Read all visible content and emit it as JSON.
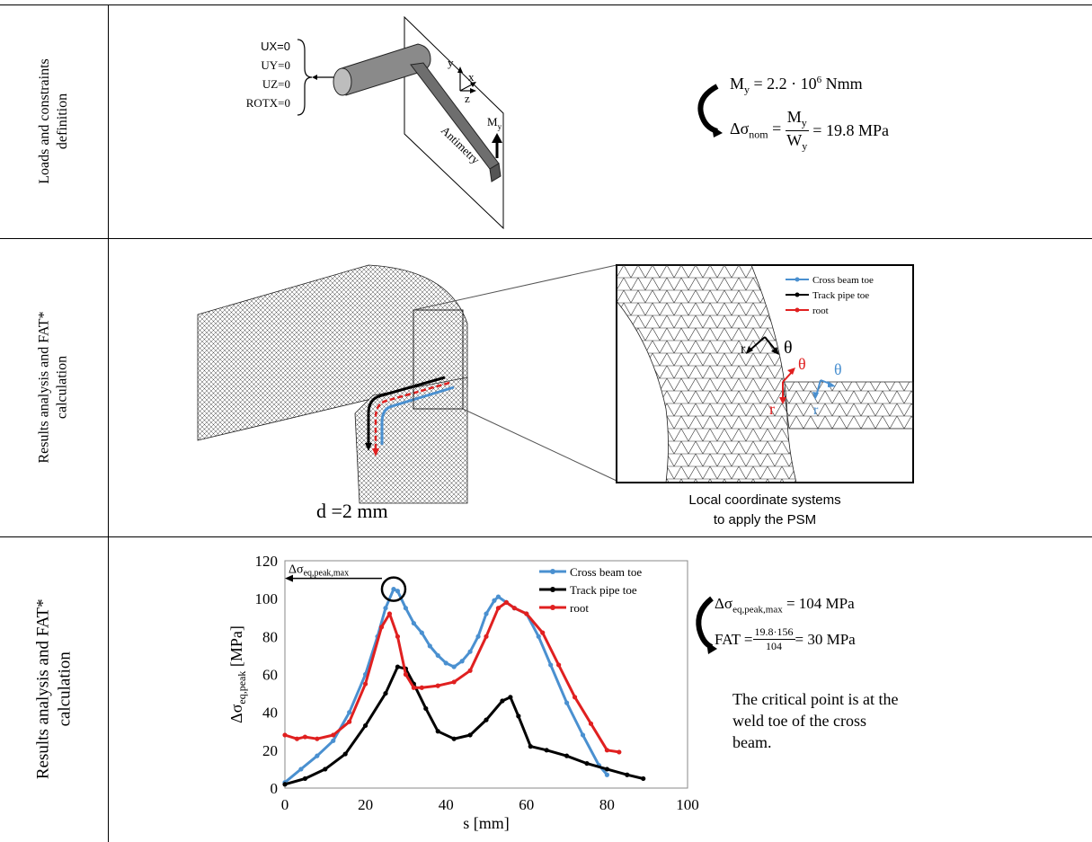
{
  "rows": [
    {
      "label_line1": "Loads and constraints",
      "label_line2": "definition"
    },
    {
      "label_line1": "Results analysis and FAT*",
      "label_line2": "calculation"
    },
    {
      "label_line1": "Results analysis and FAT*",
      "label_line2": "calculation"
    }
  ],
  "row1": {
    "constraints": [
      "UX=0",
      "UY=0",
      "UZ=0",
      "ROTX=0"
    ],
    "axis_y": "y",
    "axis_x": "x",
    "axis_z": "z",
    "antimetry_label": "Antimetry",
    "moment_label": "M",
    "moment_sub": "y",
    "moment_eq": "M",
    "moment_eq_sub": "y",
    "moment_eq_rhs": "= 2.2 · 10",
    "moment_eq_exp": "6",
    "moment_eq_unit": " Nmm",
    "nominal_lhs": "Δσ",
    "nominal_lhs_sub": "nom",
    "nominal_num": "M",
    "nominal_num_sub": "y",
    "nominal_den": "W",
    "nominal_den_sub": "y",
    "nominal_rhs": "= 19.8 MPa"
  },
  "row2": {
    "mesh_size": "d =2 mm",
    "legend": [
      {
        "name": "Cross beam toe",
        "color": "#4a90d0"
      },
      {
        "name": "Track pipe toe",
        "color": "#000000"
      },
      {
        "name": "root",
        "color": "#e02020"
      }
    ],
    "coord_r": "r",
    "coord_theta": "θ",
    "caption_line1": "Local coordinate systems",
    "caption_line2": "to apply the PSM"
  },
  "row3": {
    "peak_label": "Δσ",
    "peak_label_sub": "eq,peak,max",
    "eq1_lhs": "Δσ",
    "eq1_sub": "eq,peak,max",
    "eq1_rhs": " = 104 MPa",
    "eq2_lhs": "FAT = ",
    "eq2_num": "19.8·156",
    "eq2_den": "104",
    "eq2_rhs": " = 30 MPa",
    "note_line1": "The critical point is at the",
    "note_line2": "weld toe of the cross",
    "note_line3": "beam."
  },
  "chart_data": {
    "type": "line",
    "title": "",
    "xlabel": "s [mm]",
    "ylabel": "Δσ",
    "ylabel_sub": "eq,peak",
    "ylabel_unit": " [MPa]",
    "xlim": [
      0,
      100
    ],
    "ylim": [
      0,
      120
    ],
    "xticks": [
      0,
      20,
      40,
      60,
      80,
      100
    ],
    "yticks": [
      0,
      20,
      40,
      60,
      80,
      100,
      120
    ],
    "grid": false,
    "legend_position": "top-right",
    "series": [
      {
        "name": "Cross beam toe",
        "color": "#4a90d0",
        "x": [
          0,
          4,
          8,
          12,
          16,
          20,
          23,
          25,
          27,
          28,
          30,
          32,
          34,
          36,
          38,
          40,
          42,
          44,
          46,
          48,
          50,
          52,
          53,
          55,
          57,
          60,
          63,
          66,
          70,
          74,
          78,
          80
        ],
        "y": [
          3,
          10,
          17,
          25,
          40,
          60,
          80,
          95,
          105,
          104,
          95,
          87,
          82,
          75,
          70,
          66,
          64,
          67,
          72,
          80,
          92,
          99,
          101,
          98,
          95,
          92,
          80,
          65,
          45,
          28,
          12,
          7
        ]
      },
      {
        "name": "Track pipe toe",
        "color": "#000000",
        "x": [
          0,
          5,
          10,
          15,
          20,
          25,
          28,
          30,
          32,
          35,
          38,
          42,
          46,
          50,
          54,
          56,
          58,
          61,
          65,
          70,
          75,
          80,
          85,
          89
        ],
        "y": [
          2,
          5,
          10,
          18,
          33,
          50,
          64,
          63,
          55,
          42,
          30,
          26,
          28,
          36,
          46,
          48,
          38,
          22,
          20,
          17,
          13,
          10,
          7,
          5
        ]
      },
      {
        "name": "root",
        "color": "#e02020",
        "x": [
          0,
          3,
          5,
          8,
          12,
          16,
          20,
          24,
          26,
          28,
          30,
          32,
          34,
          38,
          42,
          46,
          50,
          53,
          55,
          57,
          60,
          64,
          68,
          72,
          76,
          80,
          83
        ],
        "y": [
          28,
          26,
          27,
          26,
          28,
          35,
          55,
          85,
          92,
          80,
          60,
          53,
          53,
          54,
          56,
          62,
          80,
          95,
          98,
          95,
          92,
          82,
          65,
          48,
          34,
          20,
          19
        ]
      }
    ],
    "annotation": "circle at peak of Cross beam toe"
  }
}
